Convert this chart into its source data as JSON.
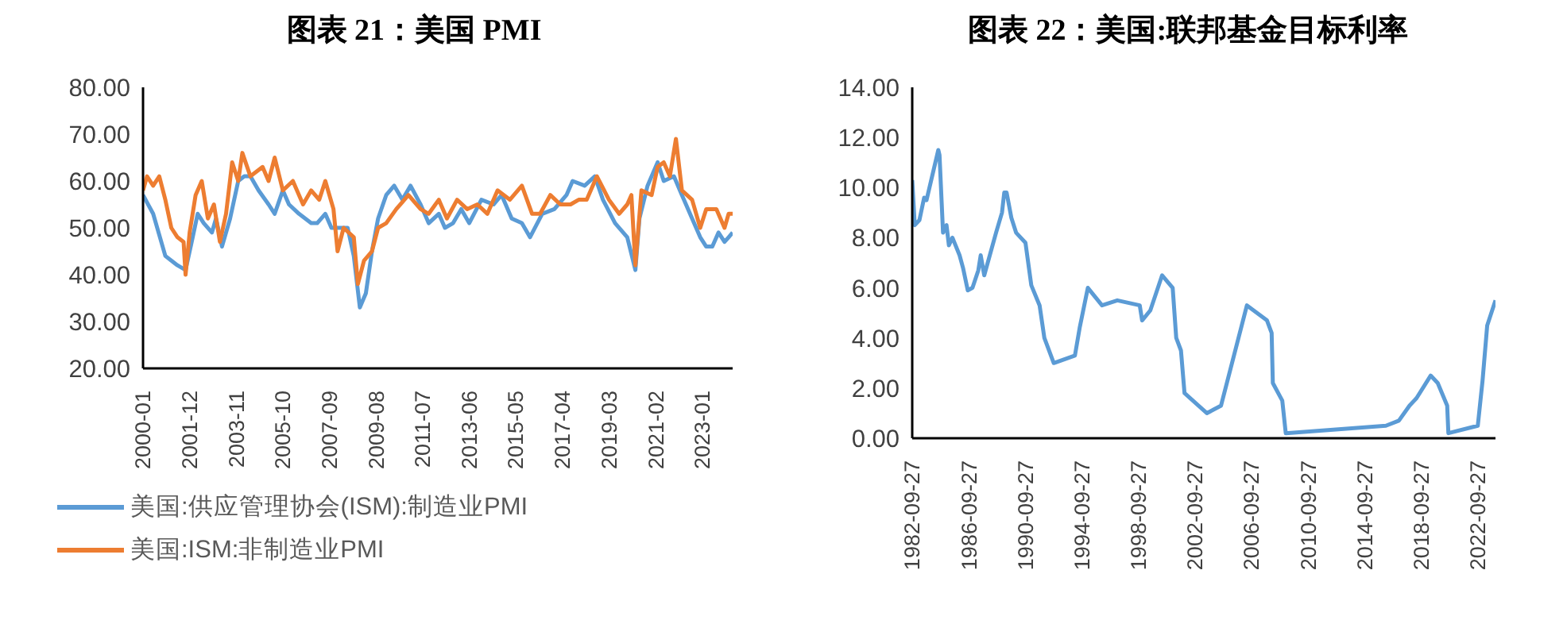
{
  "chart_data": [
    {
      "type": "line",
      "title": "图表 21：美国 PMI",
      "xlim": [
        "2000-01",
        "2024-04"
      ],
      "xticks": [
        "2000-01",
        "2001-12",
        "2003-11",
        "2005-10",
        "2007-09",
        "2009-08",
        "2011-07",
        "2013-06",
        "2015-05",
        "2017-04",
        "2019-03",
        "2021-02",
        "2023-01"
      ],
      "ylim": [
        20,
        80
      ],
      "yticks": [
        {
          "value": 20,
          "label": "20.00"
        },
        {
          "value": 30,
          "label": "30.00"
        },
        {
          "value": 40,
          "label": "40.00"
        },
        {
          "value": 50,
          "label": "50.00"
        },
        {
          "value": 60,
          "label": "60.00"
        },
        {
          "value": 70,
          "label": "70.00"
        },
        {
          "value": 80,
          "label": "80.00"
        }
      ],
      "grid": false,
      "legend": "bottom",
      "series": [
        {
          "name": "美国:供应管理协会(ISM):制造业PMI",
          "color": "#5b9bd5",
          "x": [
            "2000-01",
            "2000-06",
            "2000-12",
            "2001-03",
            "2001-06",
            "2001-10",
            "2002-01",
            "2002-04",
            "2002-07",
            "2002-11",
            "2003-01",
            "2003-04",
            "2003-08",
            "2003-12",
            "2004-03",
            "2004-06",
            "2004-10",
            "2005-03",
            "2005-06",
            "2005-10",
            "2006-01",
            "2006-06",
            "2006-12",
            "2007-03",
            "2007-07",
            "2007-10",
            "2008-01",
            "2008-06",
            "2008-09",
            "2008-12",
            "2009-03",
            "2009-06",
            "2009-09",
            "2010-01",
            "2010-05",
            "2010-09",
            "2011-01",
            "2011-06",
            "2011-10",
            "2012-03",
            "2012-06",
            "2012-10",
            "2013-02",
            "2013-06",
            "2013-12",
            "2014-06",
            "2014-10",
            "2015-03",
            "2015-08",
            "2015-12",
            "2016-06",
            "2016-12",
            "2017-06",
            "2017-09",
            "2018-03",
            "2018-08",
            "2018-12",
            "2019-06",
            "2019-12",
            "2020-04",
            "2020-06",
            "2020-10",
            "2021-03",
            "2021-06",
            "2021-11",
            "2022-03",
            "2022-08",
            "2022-12",
            "2023-03",
            "2023-06",
            "2023-09",
            "2023-12",
            "2024-02",
            "2024-04"
          ],
          "values": [
            57,
            53,
            44,
            43,
            42,
            41,
            47,
            53,
            51,
            49,
            52,
            46,
            52,
            60,
            61,
            61,
            58,
            55,
            53,
            58,
            55,
            53,
            51,
            51,
            53,
            50,
            50,
            50,
            44,
            33,
            36,
            45,
            52,
            57,
            59,
            56,
            59,
            55,
            51,
            53,
            50,
            51,
            54,
            51,
            56,
            55,
            57,
            52,
            51,
            48,
            53,
            54,
            57,
            60,
            59,
            61,
            56,
            51,
            48,
            41,
            52,
            59,
            64,
            60,
            61,
            57,
            52,
            48,
            46,
            46,
            49,
            47,
            48,
            49
          ]
        },
        {
          "name": "美国:ISM:非制造业PMI",
          "color": "#ed7d31",
          "x": [
            "2000-01",
            "2000-03",
            "2000-06",
            "2000-09",
            "2000-12",
            "2001-03",
            "2001-06",
            "2001-09",
            "2001-10",
            "2001-12",
            "2002-03",
            "2002-06",
            "2002-09",
            "2002-12",
            "2003-03",
            "2003-06",
            "2003-09",
            "2003-12",
            "2004-02",
            "2004-06",
            "2004-12",
            "2005-03",
            "2005-06",
            "2005-10",
            "2006-03",
            "2006-08",
            "2006-12",
            "2007-04",
            "2007-07",
            "2007-11",
            "2008-01",
            "2008-04",
            "2008-09",
            "2008-11",
            "2009-02",
            "2009-06",
            "2009-09",
            "2010-01",
            "2010-06",
            "2010-12",
            "2011-06",
            "2011-10",
            "2012-03",
            "2012-07",
            "2012-12",
            "2013-05",
            "2013-10",
            "2014-03",
            "2014-08",
            "2015-02",
            "2015-08",
            "2016-01",
            "2016-05",
            "2016-10",
            "2017-03",
            "2017-08",
            "2017-12",
            "2018-04",
            "2018-09",
            "2019-03",
            "2019-08",
            "2019-12",
            "2020-02",
            "2020-04",
            "2020-07",
            "2020-12",
            "2021-03",
            "2021-06",
            "2021-09",
            "2021-12",
            "2022-03",
            "2022-08",
            "2022-12",
            "2023-03",
            "2023-08",
            "2023-12",
            "2024-02",
            "2024-04"
          ],
          "values": [
            58,
            61,
            59,
            61,
            56,
            50,
            48,
            47,
            40,
            49,
            57,
            60,
            52,
            55,
            47,
            53,
            64,
            60,
            66,
            61,
            63,
            60,
            65,
            58,
            60,
            55,
            58,
            56,
            60,
            54,
            45,
            50,
            48,
            38,
            43,
            45,
            50,
            51,
            54,
            57,
            54,
            53,
            56,
            52,
            56,
            54,
            55,
            53,
            58,
            56,
            59,
            53,
            53,
            57,
            55,
            55,
            56,
            56,
            61,
            56,
            53,
            55,
            57,
            42,
            58,
            57,
            63,
            64,
            61,
            69,
            58,
            56,
            50,
            54,
            54,
            50,
            53,
            53
          ]
        }
      ]
    },
    {
      "type": "line",
      "title": "图表 22：美国:联邦基金目标利率",
      "xlim": [
        "1982-09-27",
        "2024-01"
      ],
      "xticks": [
        "1982-09-27",
        "1986-09-27",
        "1990-09-27",
        "1994-09-27",
        "1998-09-27",
        "2002-09-27",
        "2006-09-27",
        "2010-09-27",
        "2014-09-27",
        "2018-09-27",
        "2022-09-27"
      ],
      "ylim": [
        0,
        14
      ],
      "yticks": [
        {
          "value": 0,
          "label": "0.00"
        },
        {
          "value": 2,
          "label": "2.00"
        },
        {
          "value": 4,
          "label": "4.00"
        },
        {
          "value": 6,
          "label": "6.00"
        },
        {
          "value": 8,
          "label": "8.00"
        },
        {
          "value": 10,
          "label": "10.00"
        },
        {
          "value": 12,
          "label": "12.00"
        },
        {
          "value": 14,
          "label": "14.00"
        }
      ],
      "grid": false,
      "legend": false,
      "series": [
        {
          "color": "#5b9bd5",
          "x": [
            "1982-09-27",
            "1982-12",
            "1983-04",
            "1983-08",
            "1983-10",
            "1984-08",
            "1984-09",
            "1984-12",
            "1985-03",
            "1985-05",
            "1985-08",
            "1986-02",
            "1986-05",
            "1986-09",
            "1987-01",
            "1987-06",
            "1987-08",
            "1987-11",
            "1988-09",
            "1989-02",
            "1989-04",
            "1989-06",
            "1989-10",
            "1990-02",
            "1990-10",
            "1991-03",
            "1991-10",
            "1992-02",
            "1992-10",
            "1994-04",
            "1994-08",
            "1995-03",
            "1996-03",
            "1997-04",
            "1998-11",
            "1999-01",
            "1999-08",
            "2000-06",
            "2001-03",
            "2001-06",
            "2001-10",
            "2002-01",
            "2003-08",
            "2004-08",
            "2006-06",
            "2007-11",
            "2008-03",
            "2008-04",
            "2008-12",
            "2009-03",
            "2016-04",
            "2017-03",
            "2017-12",
            "2018-06",
            "2019-06",
            "2019-12",
            "2020-08",
            "2020-09",
            "2022-10",
            "2023-02",
            "2023-06",
            "2024-01"
          ],
          "values": [
            10.3,
            8.5,
            8.7,
            9.6,
            9.5,
            11.5,
            11.3,
            8.2,
            8.5,
            7.7,
            8,
            7.3,
            6.8,
            5.9,
            6,
            6.7,
            7.3,
            6.5,
            8.2,
            9,
            9.8,
            9.8,
            8.8,
            8.2,
            7.8,
            6.1,
            5.3,
            4,
            3,
            3.3,
            4.4,
            6,
            5.3,
            5.5,
            5.3,
            4.7,
            5.1,
            6.5,
            6,
            4,
            3.5,
            1.8,
            1,
            1.3,
            5.3,
            4.7,
            4.2,
            2.2,
            1.5,
            0.2,
            0.5,
            0.7,
            1.3,
            1.6,
            2.5,
            2.2,
            1.3,
            0.2,
            0.5,
            2.3,
            4.5,
            5.5
          ]
        }
      ]
    }
  ]
}
